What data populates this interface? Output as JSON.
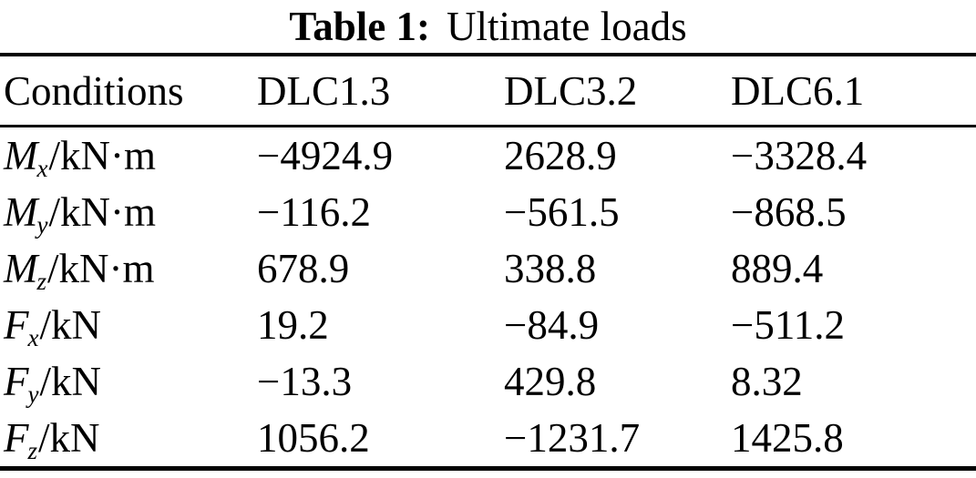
{
  "caption": {
    "label": "Table 1:",
    "title": "Ultimate loads"
  },
  "table": {
    "columns": [
      "Conditions",
      "DLC1.3",
      "DLC3.2",
      "DLC6.1"
    ],
    "rows": [
      {
        "label": {
          "symbol": "M",
          "subscript": "x",
          "unit": "/kN·m"
        },
        "values": [
          "−4924.9",
          "2628.9",
          "−3328.4"
        ]
      },
      {
        "label": {
          "symbol": "M",
          "subscript": "y",
          "unit": "/kN·m"
        },
        "values": [
          "−116.2",
          "−561.5",
          "−868.5"
        ]
      },
      {
        "label": {
          "symbol": "M",
          "subscript": "z",
          "unit": "/kN·m"
        },
        "values": [
          "678.9",
          "338.8",
          "889.4"
        ]
      },
      {
        "label": {
          "symbol": "F",
          "subscript": "x",
          "unit": "/kN"
        },
        "values": [
          "19.2",
          "−84.9",
          "−511.2"
        ]
      },
      {
        "label": {
          "symbol": "F",
          "subscript": "y",
          "unit": "/kN"
        },
        "values": [
          "−13.3",
          "429.8",
          "8.32"
        ]
      },
      {
        "label": {
          "symbol": "F",
          "subscript": "z",
          "unit": "/kN"
        },
        "values": [
          "1056.2",
          "−1231.7",
          "1425.8"
        ]
      }
    ]
  },
  "colors": {
    "text": "#000000",
    "background": "#ffffff",
    "rule": "#000000"
  }
}
